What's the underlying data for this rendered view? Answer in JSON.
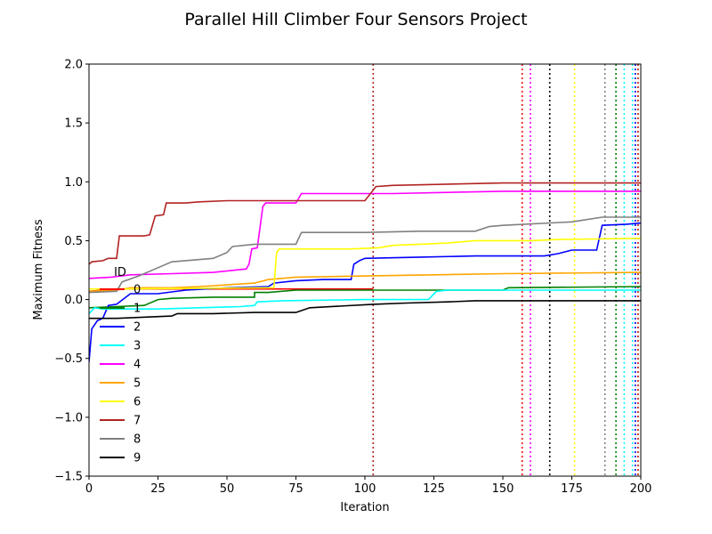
{
  "chart_data": {
    "type": "line",
    "title": "Parallel Hill Climber Four Sensors Project",
    "xlabel": "Iteration",
    "ylabel": "Maximum Fitness",
    "xlim": [
      0,
      200
    ],
    "ylim": [
      -1.5,
      2.0
    ],
    "xticks": [
      0,
      25,
      50,
      75,
      100,
      125,
      150,
      175,
      200
    ],
    "xtick_labels": [
      "0",
      "25",
      "50",
      "75",
      "100",
      "125",
      "150",
      "175",
      "200"
    ],
    "yticks": [
      -1.5,
      -1.0,
      -0.5,
      0.0,
      0.5,
      1.0,
      1.5,
      2.0
    ],
    "ytick_labels": [
      "−1.5",
      "−1.0",
      "−0.5",
      "0.0",
      "0.5",
      "1.0",
      "1.5",
      "2.0"
    ],
    "grid": false,
    "legend": {
      "title": "ID",
      "placement": "lower-left"
    },
    "series": [
      {
        "name": "0",
        "color": "#ff0000",
        "vline": 157,
        "points": [
          [
            0,
            0.07
          ],
          [
            5,
            0.08
          ],
          [
            10,
            0.09
          ],
          [
            15,
            0.09
          ],
          [
            20,
            0.09
          ],
          [
            100,
            0.09
          ],
          [
            103,
            0.09
          ]
        ]
      },
      {
        "name": "1",
        "color": "#008000",
        "vline": 191,
        "points": [
          [
            0,
            -0.07
          ],
          [
            10,
            -0.06
          ],
          [
            20,
            -0.05
          ],
          [
            25,
            0.0
          ],
          [
            30,
            0.01
          ],
          [
            45,
            0.02
          ],
          [
            60,
            0.02
          ],
          [
            60,
            0.06
          ],
          [
            65,
            0.06
          ],
          [
            75,
            0.08
          ],
          [
            150,
            0.08
          ],
          [
            152,
            0.1
          ],
          [
            200,
            0.11
          ]
        ]
      },
      {
        "name": "2",
        "color": "#0000ff",
        "vline": 198,
        "points": [
          [
            0,
            -0.53
          ],
          [
            1,
            -0.25
          ],
          [
            3,
            -0.18
          ],
          [
            5,
            -0.16
          ],
          [
            7,
            -0.05
          ],
          [
            10,
            -0.04
          ],
          [
            15,
            0.05
          ],
          [
            20,
            0.05
          ],
          [
            25,
            0.05
          ],
          [
            35,
            0.08
          ],
          [
            50,
            0.1
          ],
          [
            65,
            0.11
          ],
          [
            67,
            0.14
          ],
          [
            75,
            0.16
          ],
          [
            85,
            0.17
          ],
          [
            95,
            0.17
          ],
          [
            96,
            0.3
          ],
          [
            98,
            0.33
          ],
          [
            100,
            0.35
          ],
          [
            120,
            0.36
          ],
          [
            140,
            0.37
          ],
          [
            165,
            0.37
          ],
          [
            170,
            0.39
          ],
          [
            175,
            0.42
          ],
          [
            180,
            0.42
          ],
          [
            184,
            0.42
          ],
          [
            186,
            0.63
          ],
          [
            195,
            0.64
          ],
          [
            200,
            0.65
          ]
        ]
      },
      {
        "name": "3",
        "color": "#00ffff",
        "vline": 194,
        "points": [
          [
            0,
            -0.12
          ],
          [
            2,
            -0.07
          ],
          [
            5,
            -0.08
          ],
          [
            25,
            -0.08
          ],
          [
            40,
            -0.07
          ],
          [
            55,
            -0.06
          ],
          [
            60,
            -0.05
          ],
          [
            61,
            -0.02
          ],
          [
            70,
            -0.01
          ],
          [
            100,
            0.0
          ],
          [
            123,
            0.0
          ],
          [
            126,
            0.07
          ],
          [
            130,
            0.08
          ],
          [
            190,
            0.08
          ],
          [
            200,
            0.08
          ]
        ]
      },
      {
        "name": "4",
        "color": "#ff00ff",
        "vline": 160,
        "points": [
          [
            0,
            0.18
          ],
          [
            8,
            0.19
          ],
          [
            15,
            0.21
          ],
          [
            30,
            0.22
          ],
          [
            45,
            0.23
          ],
          [
            57,
            0.26
          ],
          [
            58,
            0.3
          ],
          [
            59,
            0.43
          ],
          [
            61,
            0.44
          ],
          [
            63,
            0.79
          ],
          [
            64,
            0.82
          ],
          [
            75,
            0.82
          ],
          [
            77,
            0.9
          ],
          [
            110,
            0.9
          ],
          [
            150,
            0.92
          ],
          [
            200,
            0.92
          ]
        ]
      },
      {
        "name": "5",
        "color": "#ffa500",
        "vline": 199,
        "points": [
          [
            0,
            0.07
          ],
          [
            10,
            0.08
          ],
          [
            15,
            0.1
          ],
          [
            30,
            0.1
          ],
          [
            40,
            0.11
          ],
          [
            60,
            0.14
          ],
          [
            65,
            0.17
          ],
          [
            75,
            0.19
          ],
          [
            100,
            0.2
          ],
          [
            150,
            0.22
          ],
          [
            200,
            0.23
          ]
        ]
      },
      {
        "name": "6",
        "color": "#ffff00",
        "vline": 176,
        "points": [
          [
            0,
            0.09
          ],
          [
            10,
            0.09
          ],
          [
            67,
            0.1
          ],
          [
            68,
            0.4
          ],
          [
            69,
            0.43
          ],
          [
            95,
            0.43
          ],
          [
            105,
            0.44
          ],
          [
            110,
            0.46
          ],
          [
            120,
            0.47
          ],
          [
            130,
            0.48
          ],
          [
            140,
            0.5
          ],
          [
            160,
            0.5
          ],
          [
            170,
            0.51
          ],
          [
            200,
            0.52
          ]
        ]
      },
      {
        "name": "7",
        "color": "#b22222",
        "vline": 199,
        "points": [
          [
            0,
            0.3
          ],
          [
            1,
            0.32
          ],
          [
            5,
            0.33
          ],
          [
            7,
            0.35
          ],
          [
            10,
            0.35
          ],
          [
            11,
            0.54
          ],
          [
            15,
            0.54
          ],
          [
            20,
            0.54
          ],
          [
            22,
            0.55
          ],
          [
            24,
            0.71
          ],
          [
            27,
            0.72
          ],
          [
            28,
            0.82
          ],
          [
            35,
            0.82
          ],
          [
            40,
            0.83
          ],
          [
            50,
            0.84
          ],
          [
            100,
            0.84
          ],
          [
            104,
            0.96
          ],
          [
            110,
            0.97
          ],
          [
            150,
            0.99
          ],
          [
            200,
            0.99
          ]
        ]
      },
      {
        "name": "8",
        "color": "#808080",
        "vline": 187,
        "points": [
          [
            0,
            0.06
          ],
          [
            10,
            0.07
          ],
          [
            12,
            0.15
          ],
          [
            18,
            0.2
          ],
          [
            22,
            0.24
          ],
          [
            30,
            0.32
          ],
          [
            45,
            0.35
          ],
          [
            50,
            0.4
          ],
          [
            52,
            0.45
          ],
          [
            60,
            0.47
          ],
          [
            75,
            0.47
          ],
          [
            77,
            0.57
          ],
          [
            100,
            0.57
          ],
          [
            120,
            0.58
          ],
          [
            140,
            0.58
          ],
          [
            145,
            0.62
          ],
          [
            150,
            0.63
          ],
          [
            175,
            0.66
          ],
          [
            186,
            0.7
          ],
          [
            200,
            0.7
          ]
        ]
      },
      {
        "name": "9",
        "color": "#000000",
        "vline": 167,
        "points": [
          [
            0,
            -0.16
          ],
          [
            10,
            -0.16
          ],
          [
            30,
            -0.14
          ],
          [
            32,
            -0.12
          ],
          [
            45,
            -0.12
          ],
          [
            60,
            -0.11
          ],
          [
            75,
            -0.11
          ],
          [
            80,
            -0.07
          ],
          [
            103,
            -0.04
          ],
          [
            115,
            -0.03
          ],
          [
            130,
            -0.02
          ],
          [
            140,
            -0.01
          ],
          [
            200,
            -0.01
          ]
        ]
      }
    ],
    "extra_vlines": [
      {
        "x": 103,
        "color": "#b22222"
      },
      {
        "x": 197,
        "color": "#00ffff"
      }
    ]
  }
}
